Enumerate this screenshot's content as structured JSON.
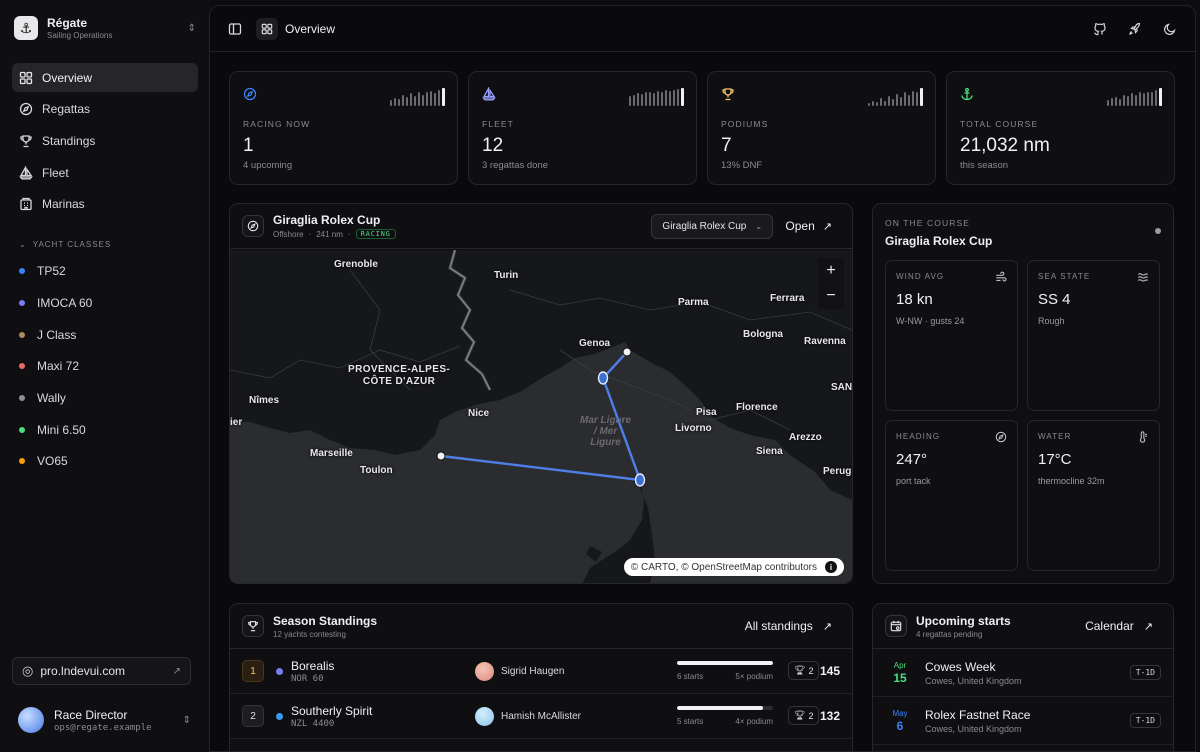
{
  "brand": {
    "title": "Régate",
    "subtitle": "Sailing Operations"
  },
  "nav": [
    {
      "label": "Overview",
      "icon": "grid-icon",
      "active": true
    },
    {
      "label": "Regattas",
      "icon": "compass-icon",
      "active": false
    },
    {
      "label": "Standings",
      "icon": "trophy-icon",
      "active": false
    },
    {
      "label": "Fleet",
      "icon": "sailboat-icon",
      "active": false
    },
    {
      "label": "Marinas",
      "icon": "building-icon",
      "active": false
    }
  ],
  "yacht_classes": {
    "label": "YACHT CLASSES",
    "items": [
      {
        "label": "TP52",
        "color": "#3b82f6"
      },
      {
        "label": "IMOCA 60",
        "color": "#7c7cf0"
      },
      {
        "label": "J Class",
        "color": "#b08a5e"
      },
      {
        "label": "Maxi 72",
        "color": "#e86a6a"
      },
      {
        "label": "Wally",
        "color": "#8a9099"
      },
      {
        "label": "Mini 6.50",
        "color": "#4ade80"
      },
      {
        "label": "VO65",
        "color": "#f59e0b"
      }
    ]
  },
  "pro_link": "pro.lndevui.com",
  "user": {
    "name": "Race Director",
    "email": "ops@regate.example"
  },
  "topbar": {
    "title": "Overview"
  },
  "kpis": [
    {
      "label": "RACING NOW",
      "value": "1",
      "sub": "4 upcoming",
      "icon": "compass-icon",
      "color": "#3b82f6",
      "spark": [
        0.35,
        0.45,
        0.4,
        0.6,
        0.5,
        0.7,
        0.55,
        0.8,
        0.6,
        0.75,
        0.85,
        0.7,
        0.9,
        1.0
      ]
    },
    {
      "label": "FLEET",
      "value": "12",
      "sub": "3 regattas done",
      "icon": "sailboat-icon",
      "color": "#9aa0ff",
      "spark": [
        0.55,
        0.6,
        0.7,
        0.65,
        0.75,
        0.8,
        0.7,
        0.85,
        0.8,
        0.9,
        0.85,
        0.9,
        0.95,
        1.0
      ]
    },
    {
      "label": "PODIUMS",
      "value": "7",
      "sub": "13% DNF",
      "icon": "trophy-icon",
      "color": "#f5c46b",
      "spark": [
        0.15,
        0.3,
        0.2,
        0.45,
        0.3,
        0.55,
        0.4,
        0.65,
        0.5,
        0.75,
        0.6,
        0.85,
        0.8,
        1.0
      ]
    },
    {
      "label": "TOTAL COURSE",
      "value": "21,032 nm",
      "sub": "this season",
      "icon": "anchor-icon",
      "color": "#4ade80",
      "spark": [
        0.35,
        0.45,
        0.5,
        0.4,
        0.6,
        0.55,
        0.7,
        0.6,
        0.75,
        0.7,
        0.8,
        0.75,
        0.9,
        1.0
      ]
    }
  ],
  "map": {
    "title": "Giraglia Rolex Cup",
    "type": "Offshore",
    "distance": "241 nm",
    "status": "RACING",
    "select_value": "Giraglia Rolex Cup",
    "open_label": "Open",
    "attribution": "© CARTO, © OpenStreetMap contributors",
    "cities": [
      {
        "name": "Grenoble"
      },
      {
        "name": "Turin"
      },
      {
        "name": "Parma"
      },
      {
        "name": "Ferrara"
      },
      {
        "name": "Genoa"
      },
      {
        "name": "Bologna"
      },
      {
        "name": "Ravenna"
      },
      {
        "name": "Nîmes"
      },
      {
        "name": "Nice"
      },
      {
        "name": "Pisa"
      },
      {
        "name": "Florence"
      },
      {
        "name": "Livorno"
      },
      {
        "name": "Arezzo"
      },
      {
        "name": "Marseille"
      },
      {
        "name": "Toulon"
      },
      {
        "name": "Siena"
      },
      {
        "name": "Perugi"
      },
      {
        "name": "SAN"
      },
      {
        "name": "ier"
      }
    ],
    "region_label": [
      "PROVENCE-ALPES-",
      "CÔTE D'AZUR"
    ],
    "sea_label": [
      "Mar Ligure",
      "/ Mer",
      "Ligure"
    ]
  },
  "course": {
    "label": "ON THE COURSE",
    "title": "Giraglia Rolex Cup",
    "tiles": [
      {
        "label": "WIND AVG",
        "value": "18 kn",
        "sub": "W-NW · gusts 24",
        "icon": "wind-icon"
      },
      {
        "label": "SEA STATE",
        "value": "SS 4",
        "sub": "Rough",
        "icon": "waves-icon"
      },
      {
        "label": "HEADING",
        "value": "247°",
        "sub": "port tack",
        "icon": "compass-icon"
      },
      {
        "label": "WATER",
        "value": "17°C",
        "sub": "thermocline 32m",
        "icon": "thermometer-icon"
      }
    ]
  },
  "standings": {
    "title": "Season Standings",
    "sub": "12 yachts contesting",
    "all_label": "All standings",
    "rows": [
      {
        "rank": "1",
        "name": "Borealis",
        "code": "NOR 60",
        "dot": "#7c7cf0",
        "skipper": "Sigrid Haugen",
        "progress": 1.0,
        "starts": "6 starts",
        "podium": "5× podium",
        "wins": "2",
        "points": "145"
      },
      {
        "rank": "2",
        "name": "Southerly Spirit",
        "code": "NZL 4400",
        "dot": "#3b9bf0",
        "skipper": "Hamish McAllister",
        "progress": 0.9,
        "starts": "5 starts",
        "podium": "4× podium",
        "wins": "2",
        "points": "132"
      }
    ]
  },
  "upcoming": {
    "title": "Upcoming starts",
    "sub": "4 regattas pending",
    "calendar_label": "Calendar",
    "rows": [
      {
        "month": "Apr",
        "day": "15",
        "name": "Cowes Week",
        "location": "Cowes, United Kingdom",
        "tminus": "T-1D",
        "color": "#4ade80"
      },
      {
        "month": "May",
        "day": "6",
        "name": "Rolex Fastnet Race",
        "location": "Cowes, United Kingdom",
        "tminus": "T-1D",
        "color": "#3b82f6"
      }
    ]
  }
}
